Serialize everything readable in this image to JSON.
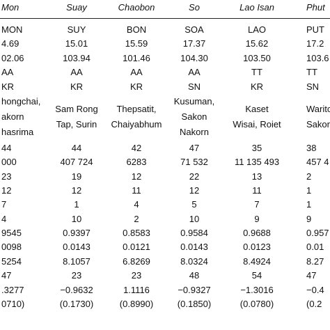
{
  "table": {
    "header": [
      "Mon",
      "Suay",
      "Chaobon",
      "So",
      "Lao Isan",
      "Phut"
    ],
    "rows": [
      [
        "MON",
        "SUY",
        "BON",
        "SOA",
        "LAO",
        "PUT"
      ],
      [
        "4.69",
        "15.01",
        "15.59",
        "17.37",
        "15.62",
        "17.2"
      ],
      [
        "02.06",
        "103.94",
        "101.46",
        "104.30",
        "103.50",
        "103.6"
      ],
      [
        "AA",
        "AA",
        "AA",
        "AA",
        "TT",
        "TT"
      ],
      [
        "KR",
        "KR",
        "KR",
        "SN",
        "KR",
        "SN"
      ],
      [
        "hongchai,\nakorn\nhasrima",
        "Sam Rong\nTap, Surin",
        "Thepsatit,\nChaiyabhum",
        "Kusuman,\nSakon\nNakorn",
        "Kaset\nWisai, Roiet",
        "Waritchab\nSakon Na"
      ],
      [
        "44",
        "44",
        "42",
        "47",
        "35",
        "38"
      ],
      [
        "000",
        "407 724",
        "6283",
        "71 532",
        "11 135 493",
        "457 4"
      ],
      [
        "23",
        "19",
        "12",
        "22",
        "13",
        "2"
      ],
      [
        "12",
        "12",
        "11",
        "12",
        "11",
        "1"
      ],
      [
        "7",
        "1",
        "4",
        "5",
        "7",
        "1"
      ],
      [
        "4",
        "10",
        "2",
        "10",
        "9",
        "9"
      ],
      [
        "9545",
        "0.9397",
        "0.8583",
        "0.9584",
        "0.9688",
        "0.957"
      ],
      [
        "0098",
        "0.0143",
        "0.0121",
        "0.0143",
        "0.0123",
        "0.01"
      ],
      [
        "5254",
        "8.1057",
        "6.8269",
        "8.0324",
        "8.4924",
        "8.27"
      ],
      [
        "47",
        "23",
        "23",
        "48",
        "54",
        "47"
      ],
      [
        ".3277",
        "−0.9632",
        "1.1116",
        "−0.9327",
        "−1.3016",
        "−0.4"
      ],
      [
        "0710)",
        "(0.1730)",
        "(0.8990)",
        "(0.1850)",
        "(0.0780)",
        "(0.2"
      ]
    ]
  }
}
